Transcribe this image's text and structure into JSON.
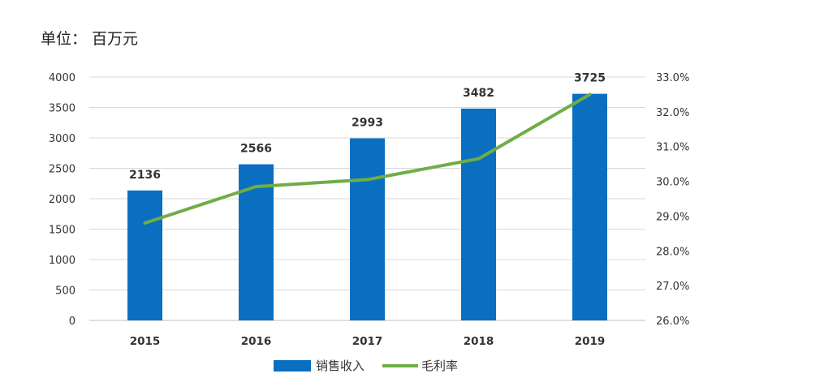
{
  "unit_label": "单位：  百万元",
  "chart_data": {
    "type": "bar",
    "categories": [
      "2015",
      "2016",
      "2017",
      "2018",
      "2019"
    ],
    "series": [
      {
        "name": "销售收入",
        "type": "bar",
        "axis": "left",
        "values": [
          2136,
          2566,
          2993,
          3482,
          3725
        ],
        "labels": [
          "2136",
          "2566",
          "2993",
          "3482",
          "3725"
        ],
        "color": "#0b6fc1"
      },
      {
        "name": "毛利率",
        "type": "line",
        "axis": "right",
        "values": [
          28.8,
          29.85,
          30.05,
          30.65,
          32.5
        ],
        "color": "#6fad46"
      }
    ],
    "y_left": {
      "min": 0,
      "max": 4000,
      "ticks": [
        0,
        500,
        1000,
        1500,
        2000,
        2500,
        3000,
        3500,
        4000
      ],
      "tick_labels": [
        "0",
        "500",
        "1000",
        "1500",
        "2000",
        "2500",
        "3000",
        "3500",
        "4000"
      ]
    },
    "y_right": {
      "min": 26,
      "max": 33,
      "ticks": [
        26,
        27,
        28,
        29,
        30,
        31,
        32,
        33
      ],
      "tick_labels": [
        "26.0%",
        "27.0%",
        "28.0%",
        "29.0%",
        "30.0%",
        "31.0%",
        "32.0%",
        "33.0%"
      ]
    },
    "grid": true,
    "legend_position": "bottom"
  }
}
